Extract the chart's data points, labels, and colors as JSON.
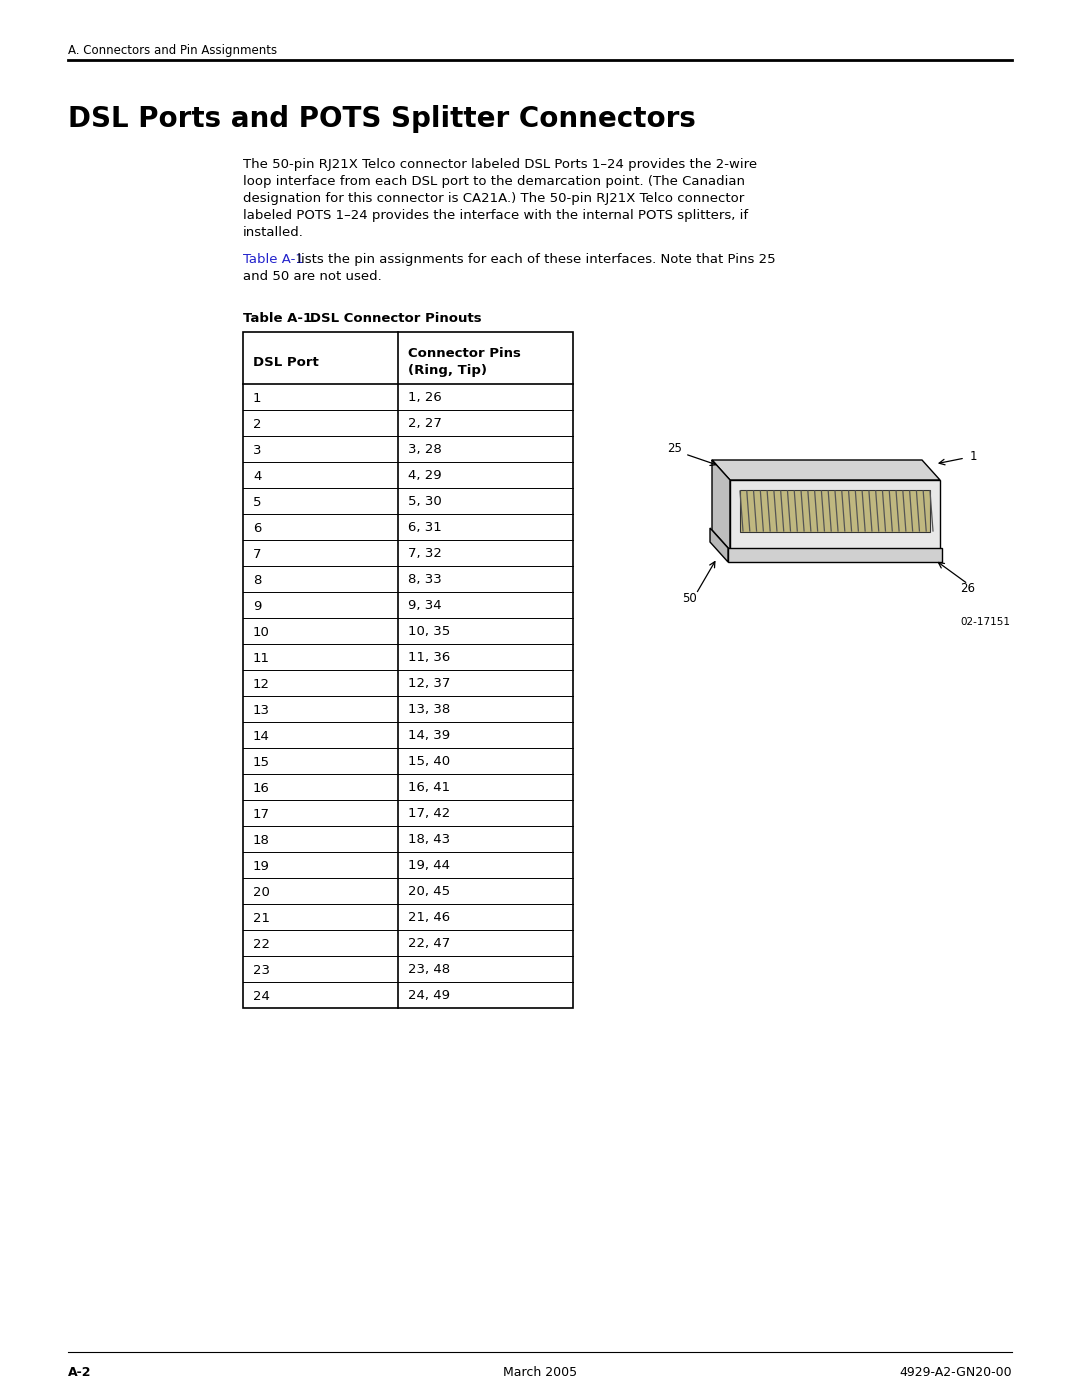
{
  "page_header": "A. Connectors and Pin Assignments",
  "section_title": "DSL Ports and POTS Splitter Connectors",
  "body_text_1_lines": [
    "The 50-pin RJ21X Telco connector labeled DSL Ports 1–24 provides the 2-wire",
    "loop interface from each DSL port to the demarcation point. (The Canadian",
    "designation for this connector is CA21A.) The 50-pin RJ21X Telco connector",
    "labeled POTS 1–24 provides the interface with the internal POTS splitters, if",
    "installed."
  ],
  "ref_text_blue": "Table A-1",
  "body_text_2a": " lists the pin assignments for each of these interfaces. Note that Pins 25",
  "body_text_2b": "and 50 are not used.",
  "table_caption": "Table A-1.",
  "table_caption2": "   DSL Connector Pinouts",
  "col1_header_line1": "",
  "col1_header_line2": "DSL Port",
  "col2_header_line1": "Connector Pins",
  "col2_header_line2": "(Ring, Tip)",
  "rows": [
    [
      "1",
      "1, 26"
    ],
    [
      "2",
      "2, 27"
    ],
    [
      "3",
      "3, 28"
    ],
    [
      "4",
      "4, 29"
    ],
    [
      "5",
      "5, 30"
    ],
    [
      "6",
      "6, 31"
    ],
    [
      "7",
      "7, 32"
    ],
    [
      "8",
      "8, 33"
    ],
    [
      "9",
      "9, 34"
    ],
    [
      "10",
      "10, 35"
    ],
    [
      "11",
      "11, 36"
    ],
    [
      "12",
      "12, 37"
    ],
    [
      "13",
      "13, 38"
    ],
    [
      "14",
      "14, 39"
    ],
    [
      "15",
      "15, 40"
    ],
    [
      "16",
      "16, 41"
    ],
    [
      "17",
      "17, 42"
    ],
    [
      "18",
      "18, 43"
    ],
    [
      "19",
      "19, 44"
    ],
    [
      "20",
      "20, 45"
    ],
    [
      "21",
      "21, 46"
    ],
    [
      "22",
      "22, 47"
    ],
    [
      "23",
      "23, 48"
    ],
    [
      "24",
      "24, 49"
    ]
  ],
  "footer_left": "A-2",
  "footer_center": "March 2005",
  "footer_right": "4929-A2-GN20-00",
  "diagram_label_1": "1",
  "diagram_label_25": "25",
  "diagram_label_26": "26",
  "diagram_label_50": "50",
  "diagram_caption": "02-17151",
  "bg_color": "#ffffff",
  "text_color": "#000000",
  "blue_color": "#2222cc",
  "line_color": "#000000",
  "table_border_color": "#000000",
  "connector_body_color": "#e0e0e0",
  "connector_top_color": "#c8c8c8",
  "connector_side_color": "#d0d0d0",
  "connector_port_color": "#f0f0f0",
  "title_fontsize": 20,
  "header_fontsize": 8.5,
  "body_fontsize": 9.5,
  "table_caption_fontsize": 9.5,
  "table_fontsize": 9.5,
  "footer_fontsize": 9,
  "diag_fontsize": 8.5
}
